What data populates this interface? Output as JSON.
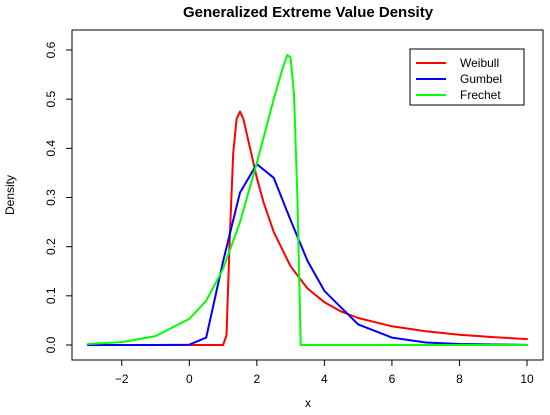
{
  "chart_data": {
    "type": "line",
    "title": "Generalized Extreme Value Density",
    "xlabel": "x",
    "ylabel": "Density",
    "xlim": [
      -3,
      10
    ],
    "ylim": [
      0,
      0.6
    ],
    "xticks": [
      -2,
      0,
      2,
      4,
      6,
      8,
      10
    ],
    "xtick_labels": [
      "−2",
      "0",
      "2",
      "4",
      "6",
      "8",
      "10"
    ],
    "yticks": [
      0.0,
      0.1,
      0.2,
      0.3,
      0.4,
      0.5,
      0.6
    ],
    "ytick_labels": [
      "0.0",
      "0.1",
      "0.2",
      "0.3",
      "0.4",
      "0.5",
      "0.6"
    ],
    "grid": false,
    "legend_position": "top-right",
    "series": [
      {
        "name": "Weibull",
        "color": "#ff0000",
        "x": [
          -3,
          0.9,
          1.0,
          1.1,
          1.2,
          1.3,
          1.4,
          1.5,
          1.6,
          1.7,
          1.8,
          2.0,
          2.2,
          2.5,
          3.0,
          3.5,
          4.0,
          4.5,
          5.0,
          6.0,
          7.0,
          8.0,
          9.0,
          10.0
        ],
        "y": [
          0.0,
          0.0,
          0.0,
          0.02,
          0.22,
          0.39,
          0.46,
          0.475,
          0.46,
          0.43,
          0.4,
          0.34,
          0.29,
          0.23,
          0.16,
          0.115,
          0.087,
          0.068,
          0.055,
          0.038,
          0.028,
          0.021,
          0.016,
          0.012
        ]
      },
      {
        "name": "Gumbel",
        "color": "#0000ff",
        "x": [
          -3,
          -1,
          0,
          0.5,
          1.0,
          1.5,
          2.0,
          2.5,
          3.0,
          3.5,
          4.0,
          5.0,
          6.0,
          7.0,
          8.0,
          9.0,
          10.0
        ],
        "y": [
          0.0,
          0.0,
          0.0006,
          0.015,
          0.17,
          0.31,
          0.368,
          0.34,
          0.254,
          0.171,
          0.11,
          0.042,
          0.015,
          0.005,
          0.002,
          0.001,
          0.0003
        ]
      },
      {
        "name": "Frechet",
        "color": "#00ff00",
        "x": [
          -3,
          -2,
          -1,
          0,
          0.5,
          1.0,
          1.5,
          2.0,
          2.5,
          2.75,
          2.9,
          3.0,
          3.1,
          3.2,
          3.3,
          3.5,
          6,
          10
        ],
        "y": [
          0.002,
          0.006,
          0.018,
          0.053,
          0.09,
          0.155,
          0.25,
          0.37,
          0.5,
          0.56,
          0.59,
          0.585,
          0.51,
          0.3,
          0.0,
          0.0,
          0.0,
          0.0
        ]
      }
    ]
  }
}
